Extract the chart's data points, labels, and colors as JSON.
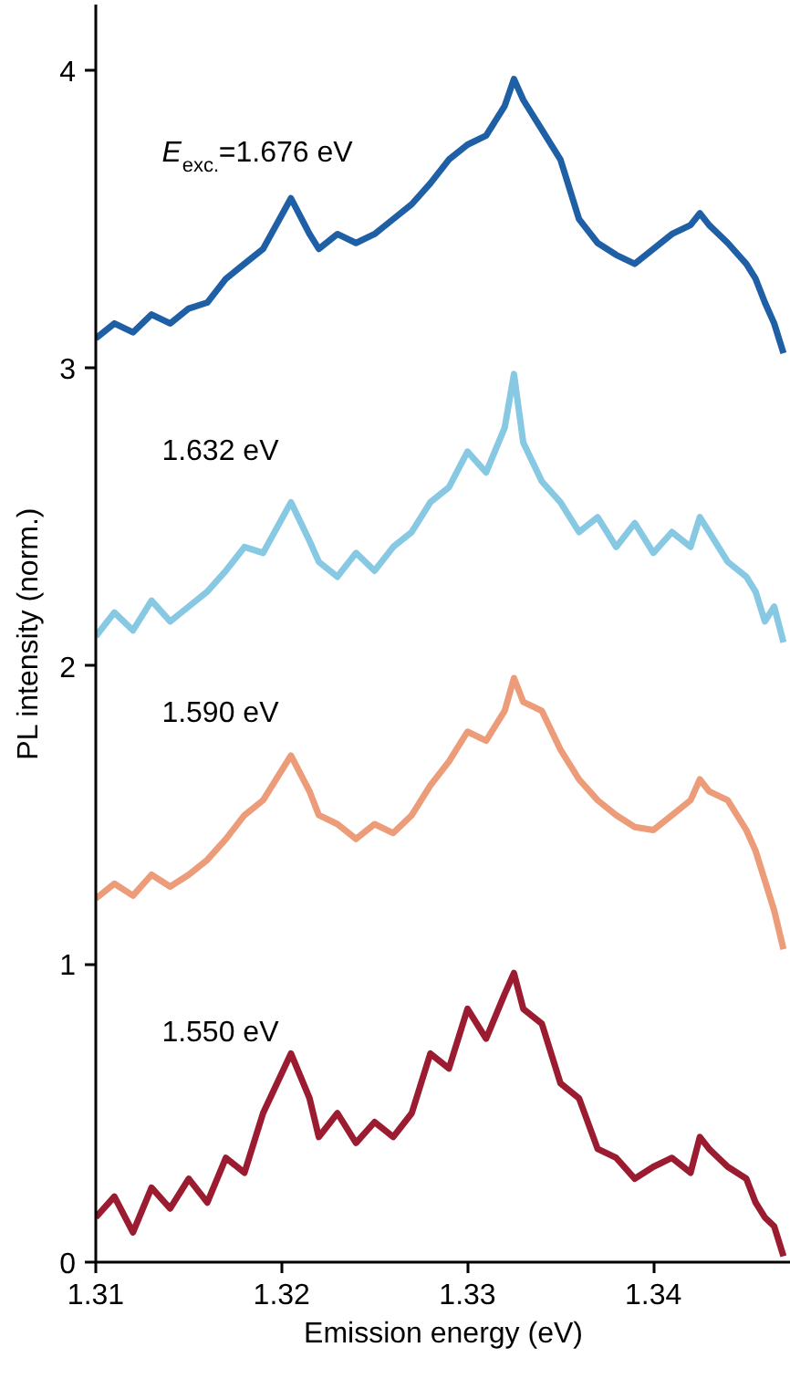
{
  "chart_data": {
    "type": "line",
    "xlabel": "Emission energy (eV)",
    "ylabel": "PL intensity (norm.)",
    "xlim": [
      1.31,
      1.3474
    ],
    "ylim": [
      0,
      4.22
    ],
    "xticks": [
      1.31,
      1.32,
      1.33,
      1.34
    ],
    "yticks": [
      0,
      1,
      2,
      3,
      4
    ],
    "grid": false,
    "line_style": "solid",
    "marker": "none",
    "x": [
      1.31,
      1.311,
      1.312,
      1.313,
      1.314,
      1.315,
      1.316,
      1.317,
      1.318,
      1.319,
      1.3205,
      1.3215,
      1.322,
      1.323,
      1.324,
      1.325,
      1.326,
      1.327,
      1.328,
      1.329,
      1.33,
      1.331,
      1.332,
      1.3325,
      1.333,
      1.334,
      1.335,
      1.336,
      1.337,
      1.338,
      1.339,
      1.34,
      1.341,
      1.342,
      1.3425,
      1.343,
      1.344,
      1.345,
      1.3455,
      1.346,
      1.3465,
      1.347
    ],
    "series": [
      {
        "name": "1.550 eV",
        "color": "#9b1b30",
        "values": [
          0.15,
          0.22,
          0.1,
          0.25,
          0.18,
          0.28,
          0.2,
          0.35,
          0.3,
          0.5,
          0.7,
          0.55,
          0.42,
          0.5,
          0.4,
          0.47,
          0.42,
          0.5,
          0.7,
          0.65,
          0.85,
          0.75,
          0.9,
          0.97,
          0.85,
          0.8,
          0.6,
          0.55,
          0.38,
          0.35,
          0.28,
          0.32,
          0.35,
          0.3,
          0.42,
          0.38,
          0.32,
          0.28,
          0.2,
          0.15,
          0.12,
          0.02
        ]
      },
      {
        "name": "1.590 eV",
        "color": "#ec9c78",
        "values": [
          1.22,
          1.27,
          1.23,
          1.3,
          1.26,
          1.3,
          1.35,
          1.42,
          1.5,
          1.55,
          1.7,
          1.58,
          1.5,
          1.47,
          1.42,
          1.47,
          1.44,
          1.5,
          1.6,
          1.68,
          1.78,
          1.75,
          1.85,
          1.96,
          1.88,
          1.85,
          1.72,
          1.62,
          1.55,
          1.5,
          1.46,
          1.45,
          1.5,
          1.55,
          1.62,
          1.58,
          1.55,
          1.45,
          1.38,
          1.28,
          1.18,
          1.05
        ]
      },
      {
        "name": "1.632 eV",
        "color": "#87c8e3",
        "values": [
          2.1,
          2.18,
          2.12,
          2.22,
          2.15,
          2.2,
          2.25,
          2.32,
          2.4,
          2.38,
          2.55,
          2.42,
          2.35,
          2.3,
          2.38,
          2.32,
          2.4,
          2.45,
          2.55,
          2.6,
          2.72,
          2.65,
          2.8,
          2.98,
          2.75,
          2.62,
          2.55,
          2.45,
          2.5,
          2.4,
          2.48,
          2.38,
          2.45,
          2.4,
          2.5,
          2.45,
          2.35,
          2.3,
          2.25,
          2.15,
          2.2,
          2.08
        ]
      },
      {
        "name": "E$_{exc.}$=1.676 eV",
        "color": "#1f5fa5",
        "values": [
          3.1,
          3.15,
          3.12,
          3.18,
          3.15,
          3.2,
          3.22,
          3.3,
          3.35,
          3.4,
          3.57,
          3.45,
          3.4,
          3.45,
          3.42,
          3.45,
          3.5,
          3.55,
          3.62,
          3.7,
          3.75,
          3.78,
          3.88,
          3.97,
          3.9,
          3.8,
          3.7,
          3.5,
          3.42,
          3.38,
          3.35,
          3.4,
          3.45,
          3.48,
          3.52,
          3.48,
          3.42,
          3.35,
          3.3,
          3.22,
          3.15,
          3.05
        ]
      }
    ]
  }
}
